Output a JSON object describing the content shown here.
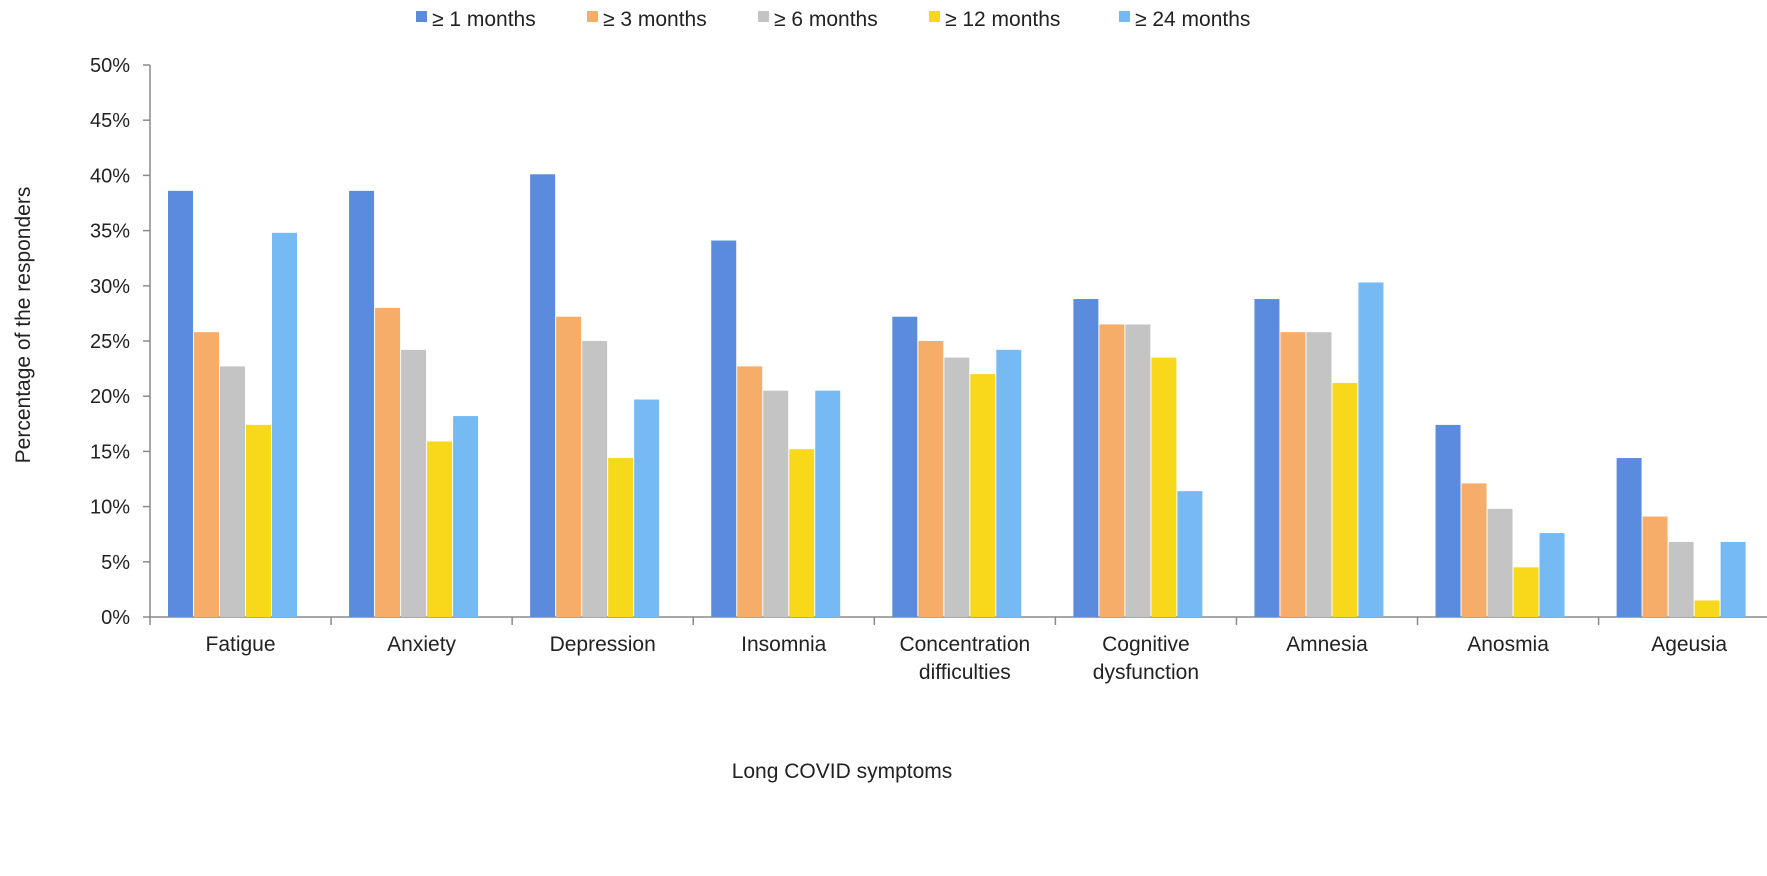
{
  "chart_data": {
    "type": "bar",
    "title": "",
    "xlabel": "Long COVID symptoms",
    "ylabel": "Percentage of the responders",
    "ylim": [
      0,
      50
    ],
    "yticks": [
      "0%",
      "5%",
      "10%",
      "15%",
      "20%",
      "25%",
      "30%",
      "35%",
      "40%",
      "45%",
      "50%"
    ],
    "grid": false,
    "legend_position": "top",
    "categories": [
      [
        "Fatigue"
      ],
      [
        "Anxiety"
      ],
      [
        "Depression"
      ],
      [
        "Insomnia"
      ],
      [
        "Concentration",
        "difficulties"
      ],
      [
        "Cognitive",
        "dysfunction"
      ],
      [
        "Amnesia"
      ],
      [
        "Anosmia"
      ],
      [
        "Ageusia"
      ]
    ],
    "series": [
      {
        "name": "≥ 1 months",
        "color": "#5b8bdc",
        "values": [
          38.6,
          38.6,
          40.1,
          34.1,
          27.2,
          28.8,
          28.8,
          17.4,
          14.4
        ]
      },
      {
        "name": "≥ 3 months",
        "color": "#f7ad6a",
        "values": [
          25.8,
          28.0,
          27.2,
          22.7,
          25.0,
          26.5,
          25.8,
          12.1,
          9.1
        ]
      },
      {
        "name": "≥ 6 months",
        "color": "#c4c4c4",
        "values": [
          22.7,
          24.2,
          25.0,
          20.5,
          23.5,
          26.5,
          25.8,
          9.8,
          6.8
        ]
      },
      {
        "name": "≥ 12 months",
        "color": "#f7d81a",
        "values": [
          17.4,
          15.9,
          14.4,
          15.2,
          22.0,
          23.5,
          21.2,
          4.5,
          1.5
        ]
      },
      {
        "name": "≥ 24 months",
        "color": "#75baf2",
        "values": [
          34.8,
          18.2,
          19.7,
          20.5,
          24.2,
          11.4,
          30.3,
          7.6,
          6.8
        ]
      }
    ]
  }
}
